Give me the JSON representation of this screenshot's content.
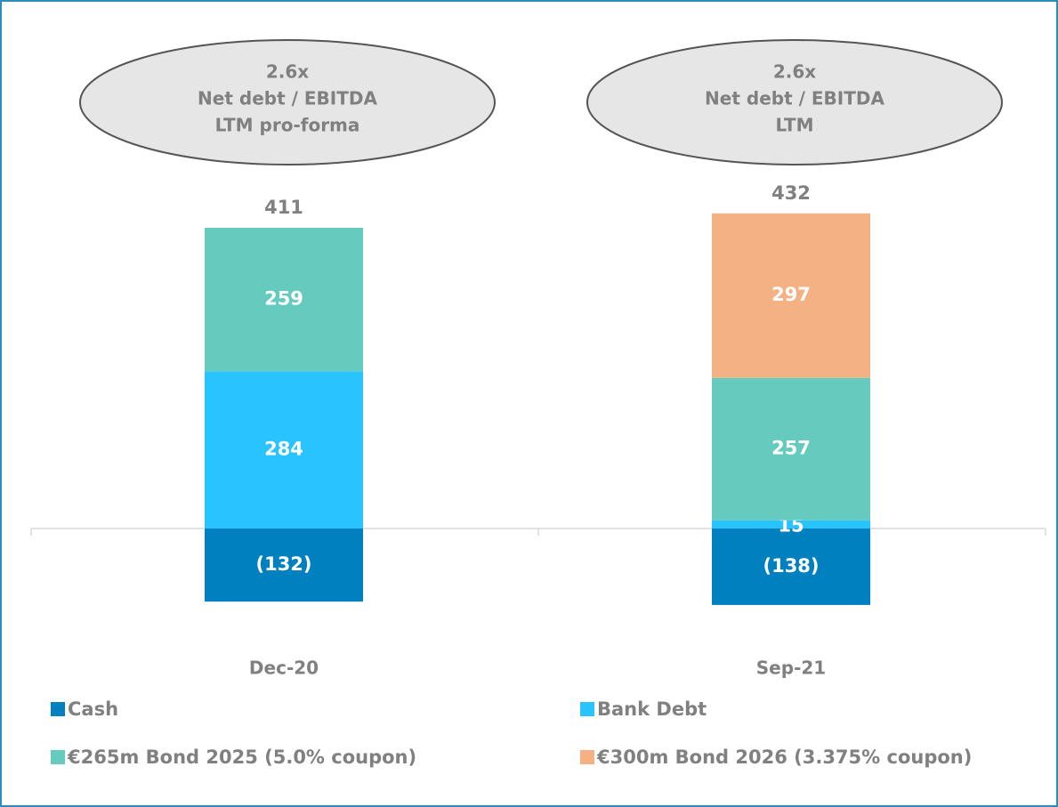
{
  "chart_data": {
    "type": "stacked_bar",
    "categories": [
      "Dec-20",
      "Sep-21"
    ],
    "annotations": [
      [
        "2.6x",
        "Net debt / EBITDA",
        "LTM pro-forma"
      ],
      [
        "2.6x",
        "Net debt / EBITDA",
        "LTM"
      ]
    ],
    "totals": [
      411,
      432
    ],
    "series": [
      {
        "name": "Cash",
        "color": "#0080be",
        "values": [
          -132,
          -138
        ],
        "value_labels": [
          "(132)",
          "(138)"
        ]
      },
      {
        "name": "Bank Debt",
        "color": "#29c4ff",
        "values": [
          284,
          15
        ]
      },
      {
        "name": "€265m Bond 2025 (5.0% coupon)",
        "color": "#66cbbf",
        "values": [
          259,
          257
        ]
      },
      {
        "name": "€300m Bond 2026 (3.375% coupon)",
        "color": "#f4b183",
        "values": [
          null,
          297
        ]
      }
    ]
  }
}
